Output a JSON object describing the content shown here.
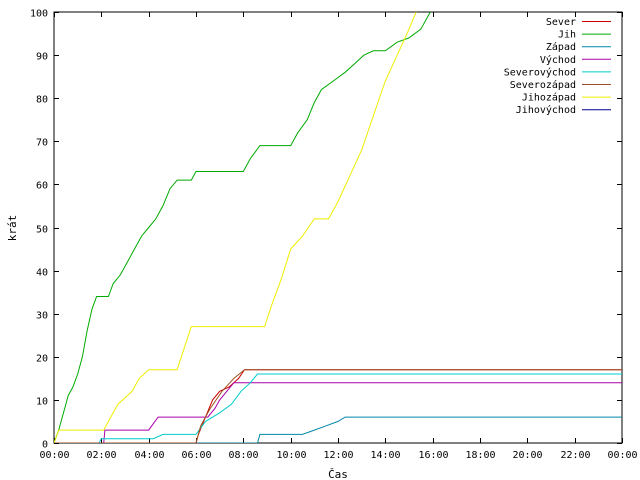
{
  "chart_data": {
    "type": "line",
    "xlabel": "Čas",
    "ylabel": "krát",
    "xlim": [
      0,
      24
    ],
    "ylim": [
      0,
      100
    ],
    "grid": false,
    "legend_position": "top-right",
    "x_ticks": [
      {
        "v": 0,
        "label": "00:00"
      },
      {
        "v": 2,
        "label": "02:00"
      },
      {
        "v": 4,
        "label": "04:00"
      },
      {
        "v": 6,
        "label": "06:00"
      },
      {
        "v": 8,
        "label": "08:00"
      },
      {
        "v": 10,
        "label": "10:00"
      },
      {
        "v": 12,
        "label": "12:00"
      },
      {
        "v": 14,
        "label": "14:00"
      },
      {
        "v": 16,
        "label": "16:00"
      },
      {
        "v": 18,
        "label": "18:00"
      },
      {
        "v": 20,
        "label": "20:00"
      },
      {
        "v": 22,
        "label": "22:00"
      },
      {
        "v": 24,
        "label": "00:00"
      }
    ],
    "y_ticks": [
      {
        "v": 0,
        "label": "0"
      },
      {
        "v": 10,
        "label": "10"
      },
      {
        "v": 20,
        "label": "20"
      },
      {
        "v": 30,
        "label": "30"
      },
      {
        "v": 40,
        "label": "40"
      },
      {
        "v": 50,
        "label": "50"
      },
      {
        "v": 60,
        "label": "60"
      },
      {
        "v": 70,
        "label": "70"
      },
      {
        "v": 80,
        "label": "80"
      },
      {
        "v": 90,
        "label": "90"
      },
      {
        "v": 100,
        "label": "100"
      }
    ],
    "series": [
      {
        "name": "Sever",
        "color": "#cc0000",
        "points": [
          [
            0,
            0
          ],
          [
            6.0,
            0
          ],
          [
            6.1,
            2
          ],
          [
            6.4,
            6
          ],
          [
            6.7,
            10
          ],
          [
            7.0,
            12
          ],
          [
            7.4,
            13
          ],
          [
            7.8,
            15
          ],
          [
            8.05,
            17
          ],
          [
            24,
            17
          ]
        ]
      },
      {
        "name": "Jih",
        "color": "#00aa00",
        "points": [
          [
            0,
            0
          ],
          [
            0.2,
            3
          ],
          [
            0.4,
            7
          ],
          [
            0.6,
            11
          ],
          [
            0.8,
            13
          ],
          [
            1.0,
            16
          ],
          [
            1.2,
            20
          ],
          [
            1.4,
            26
          ],
          [
            1.6,
            31
          ],
          [
            1.8,
            34
          ],
          [
            2.3,
            34
          ],
          [
            2.5,
            37
          ],
          [
            2.8,
            39
          ],
          [
            3.1,
            42
          ],
          [
            3.4,
            45
          ],
          [
            3.7,
            48
          ],
          [
            4.0,
            50
          ],
          [
            4.3,
            52
          ],
          [
            4.6,
            55
          ],
          [
            4.9,
            59
          ],
          [
            5.2,
            61
          ],
          [
            5.8,
            61
          ],
          [
            6.0,
            63
          ],
          [
            8.0,
            63
          ],
          [
            8.3,
            66
          ],
          [
            8.7,
            69
          ],
          [
            10.0,
            69
          ],
          [
            10.3,
            72
          ],
          [
            10.7,
            75
          ],
          [
            11.0,
            79
          ],
          [
            11.3,
            82
          ],
          [
            11.8,
            84
          ],
          [
            12.3,
            86
          ],
          [
            12.7,
            88
          ],
          [
            13.1,
            90
          ],
          [
            13.5,
            91
          ],
          [
            14.0,
            91
          ],
          [
            14.5,
            93
          ],
          [
            15.0,
            94
          ],
          [
            15.5,
            96
          ],
          [
            15.9,
            100
          ]
        ]
      },
      {
        "name": "Západ",
        "color": "#0088aa",
        "points": [
          [
            0,
            0
          ],
          [
            8.6,
            0
          ],
          [
            8.7,
            2
          ],
          [
            10.5,
            2
          ],
          [
            11.0,
            3
          ],
          [
            11.5,
            4
          ],
          [
            12.0,
            5
          ],
          [
            12.3,
            6
          ],
          [
            24,
            6
          ]
        ]
      },
      {
        "name": "Východ",
        "color": "#aa00aa",
        "points": [
          [
            0,
            0
          ],
          [
            2.1,
            0
          ],
          [
            2.15,
            3
          ],
          [
            4.0,
            3
          ],
          [
            4.4,
            6
          ],
          [
            6.5,
            6
          ],
          [
            6.8,
            8
          ],
          [
            7.0,
            10
          ],
          [
            7.3,
            12
          ],
          [
            7.6,
            14
          ],
          [
            24,
            14
          ]
        ]
      },
      {
        "name": "Severovýchod",
        "color": "#00cccc",
        "points": [
          [
            0,
            0
          ],
          [
            1.9,
            0
          ],
          [
            2.0,
            1
          ],
          [
            4.2,
            1
          ],
          [
            4.6,
            2
          ],
          [
            6.0,
            2
          ],
          [
            6.4,
            5
          ],
          [
            7.0,
            7
          ],
          [
            7.5,
            9
          ],
          [
            7.9,
            12
          ],
          [
            8.3,
            14
          ],
          [
            8.6,
            16
          ],
          [
            24,
            16
          ]
        ]
      },
      {
        "name": "Severozápad",
        "color": "#a05020",
        "points": [
          [
            0,
            0
          ],
          [
            6.0,
            0
          ],
          [
            6.2,
            4
          ],
          [
            6.6,
            8
          ],
          [
            7.1,
            12
          ],
          [
            7.6,
            15
          ],
          [
            8.05,
            17
          ],
          [
            24,
            17
          ]
        ]
      },
      {
        "name": "Jihozápad",
        "color": "#eeee00",
        "points": [
          [
            0,
            0
          ],
          [
            0.2,
            3
          ],
          [
            2.1,
            3
          ],
          [
            2.3,
            5
          ],
          [
            2.7,
            9
          ],
          [
            3.3,
            12
          ],
          [
            3.6,
            15
          ],
          [
            4.0,
            17
          ],
          [
            5.2,
            17
          ],
          [
            5.5,
            22
          ],
          [
            5.8,
            27
          ],
          [
            8.9,
            27
          ],
          [
            9.2,
            32
          ],
          [
            9.6,
            38
          ],
          [
            10.0,
            45
          ],
          [
            10.5,
            48
          ],
          [
            11.0,
            52
          ],
          [
            11.6,
            52
          ],
          [
            12.0,
            56
          ],
          [
            12.5,
            62
          ],
          [
            13.0,
            68
          ],
          [
            13.5,
            76
          ],
          [
            14.0,
            84
          ],
          [
            14.5,
            90
          ],
          [
            15.0,
            96
          ],
          [
            15.3,
            100
          ]
        ]
      },
      {
        "name": "Jihovýchod",
        "color": "#000088",
        "points": []
      }
    ]
  }
}
